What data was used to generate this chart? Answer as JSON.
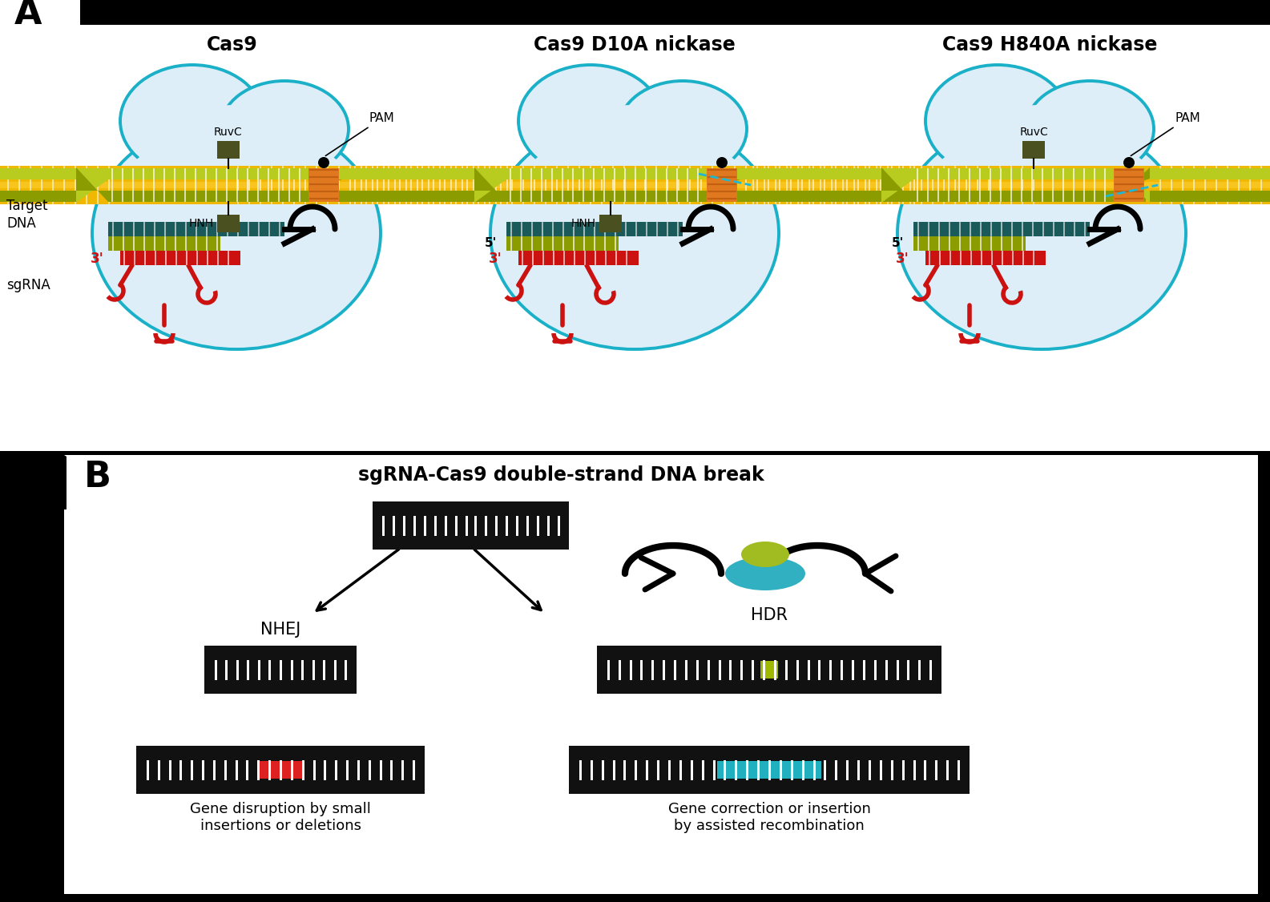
{
  "title_a": "A",
  "title_b": "B",
  "cas9_title": "Cas9",
  "cas9_d10a_title": "Cas9 D10A nickase",
  "cas9_h840a_title": "Cas9 H840A nickase",
  "panel_b_title": "sgRNA-Cas9 double-strand DNA break",
  "ruvc_label": "RuvC",
  "hnh_label": "HNH",
  "pam_label": "PAM",
  "target_dna_label": "Target\nDNA",
  "sgrna_label": "sgRNA",
  "five_prime": "5'",
  "three_prime": "3'",
  "nhej_label": "NHEJ",
  "hdr_label": "HDR",
  "gene_disruption_label": "Gene disruption by small\ninsertions or deletions",
  "gene_correction_label": "Gene correction or insertion\nby assisted recombination",
  "color_cell_bg": "#ddeef8",
  "color_cell_border": "#1ab0c8",
  "color_dna_upper": "#b8cc20",
  "color_dna_lower": "#8a9c00",
  "color_target_dna_gold": "#f0b800",
  "color_sgrna_body": "#1a5a5a",
  "color_sgrna_tail": "#cc1111",
  "color_domain": "#4a5020",
  "color_pam": "#e07820",
  "color_pam_dark": "#c06010",
  "color_black": "#111111",
  "color_white": "#ffffff",
  "color_lime": "#a8c000",
  "color_red_insert": "#dd2020",
  "color_cyan_insert": "#20b0c0",
  "color_lime_insert": "#a0b800",
  "color_teal_blob": "#30b0c0",
  "color_lime_blob": "#a0bc20"
}
